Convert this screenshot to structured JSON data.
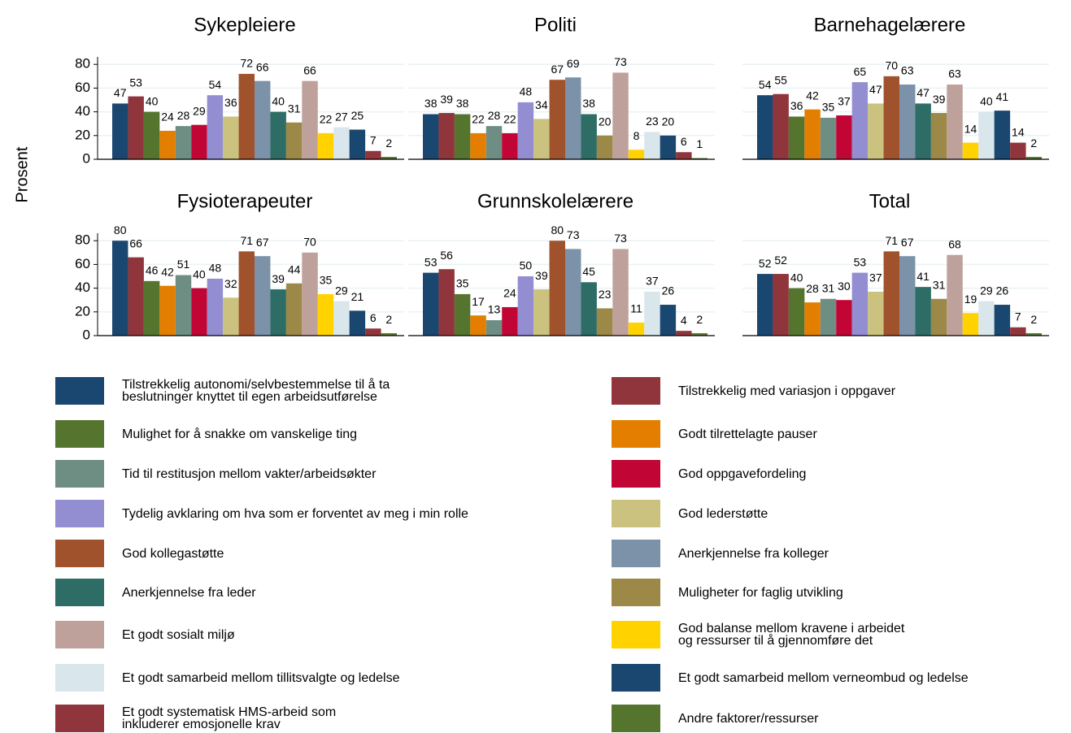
{
  "chart_data": {
    "type": "bar",
    "ylabel": "Prosent",
    "categories": [
      "Sykepleiere",
      "Politi",
      "Barnehagelærere",
      "Fysioterapeuter",
      "Grunnskolelærere",
      "Total"
    ],
    "ylim": [
      0,
      100
    ],
    "yticks": [
      0,
      20,
      40,
      60,
      80
    ],
    "grid": true,
    "series": [
      {
        "name": "Tilstrekkelig autonomi/selvbestemmelse til å ta\nbeslutninger knyttet til egen arbeidsutførelse",
        "color": "#1a476f",
        "values": [
          47,
          38,
          54,
          80,
          53,
          52
        ]
      },
      {
        "name": "Tilstrekkelig med variasjon i oppgaver",
        "color": "#90353b",
        "values": [
          53,
          39,
          55,
          66,
          56,
          52
        ]
      },
      {
        "name": "Mulighet for å snakke om vanskelige ting",
        "color": "#55752f",
        "values": [
          40,
          38,
          36,
          46,
          35,
          40
        ]
      },
      {
        "name": "Godt tilrettelagte pauser",
        "color": "#e37e00",
        "values": [
          24,
          22,
          42,
          42,
          17,
          28
        ]
      },
      {
        "name": "Tid til restitusjon mellom vakter/arbeidsøkter",
        "color": "#6e8e84",
        "values": [
          28,
          28,
          35,
          51,
          13,
          31
        ]
      },
      {
        "name": "God oppgavefordeling",
        "color": "#c10534",
        "values": [
          29,
          22,
          37,
          40,
          24,
          30
        ]
      },
      {
        "name": "Tydelig avklaring om hva som er forventet av meg i min rolle",
        "color": "#938dd2",
        "values": [
          54,
          48,
          65,
          48,
          50,
          53
        ]
      },
      {
        "name": "God lederstøtte",
        "color": "#cac27e",
        "values": [
          36,
          34,
          47,
          32,
          39,
          37
        ]
      },
      {
        "name": "God kollegastøtte",
        "color": "#a0522d",
        "values": [
          72,
          67,
          70,
          71,
          80,
          71
        ]
      },
      {
        "name": "Anerkjennelse fra kolleger",
        "color": "#7b92a8",
        "values": [
          66,
          69,
          63,
          67,
          73,
          67
        ]
      },
      {
        "name": "Anerkjennelse fra leder",
        "color": "#2d6d66",
        "values": [
          40,
          38,
          47,
          39,
          45,
          41
        ]
      },
      {
        "name": "Muligheter for faglig utvikling",
        "color": "#9c8847",
        "values": [
          31,
          20,
          39,
          44,
          23,
          31
        ]
      },
      {
        "name": "Et godt sosialt miljø",
        "color": "#bfa19c",
        "values": [
          66,
          73,
          63,
          70,
          73,
          68
        ]
      },
      {
        "name": "God balanse mellom kravene i arbeidet\nog ressurser til å gjennomføre det",
        "color": "#ffd200",
        "values": [
          22,
          8,
          14,
          35,
          11,
          19
        ]
      },
      {
        "name": "Et godt samarbeid mellom tillitsvalgte og ledelse",
        "color": "#d9e6eb",
        "values": [
          27,
          23,
          40,
          29,
          37,
          29
        ]
      },
      {
        "name": "Et godt samarbeid mellom verneombud og ledelse",
        "color": "#1a476f",
        "values": [
          25,
          20,
          41,
          21,
          26,
          26
        ]
      },
      {
        "name": "Et godt systematisk HMS-arbeid som\ninkluderer emosjonelle krav",
        "color": "#90353b",
        "values": [
          7,
          6,
          14,
          6,
          4,
          7
        ]
      },
      {
        "name": "Andre faktorer/ressurser",
        "color": "#55752f",
        "values": [
          2,
          1,
          2,
          2,
          2,
          2
        ]
      }
    ]
  }
}
